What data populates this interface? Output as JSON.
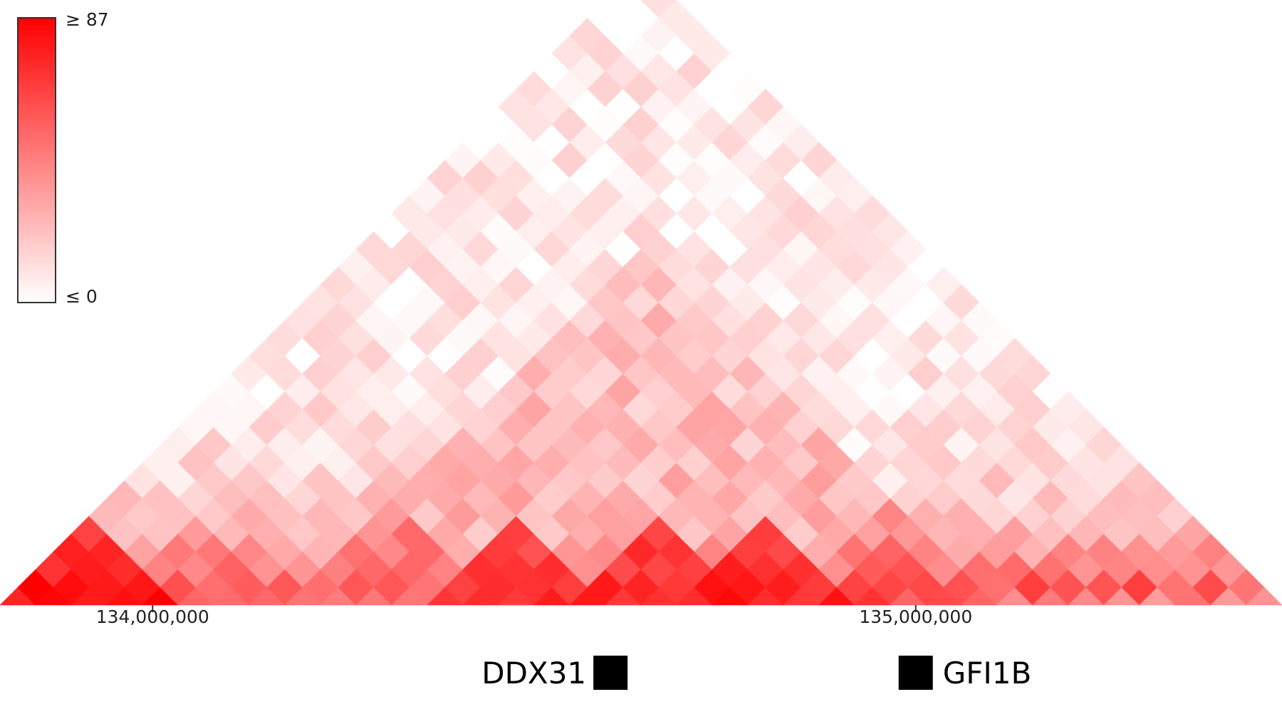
{
  "chart_data": {
    "type": "heatmap",
    "description_kind": "triangular contact map",
    "n_bins": 36,
    "color_scale": {
      "min_label": "≤ 0",
      "max_label": "≥ 87",
      "min_value": 0,
      "max_value": 87,
      "low_color": "#ffffff",
      "high_color": "#ff0000",
      "legend_placement": "top-left"
    },
    "x_axis": {
      "range_bp": [
        133800000,
        135480000
      ],
      "ticks": [
        {
          "value": 134000000,
          "label": "134,000,000"
        },
        {
          "value": 135000000,
          "label": "135,000,000"
        }
      ]
    },
    "tad_hotspots": [
      {
        "start_bin": 0,
        "end_bin": 4,
        "strength": 0.97
      },
      {
        "start_bin": 3,
        "end_bin": 7,
        "strength": 0.55
      },
      {
        "start_bin": 8,
        "end_bin": 13,
        "strength": 0.62
      },
      {
        "start_bin": 12,
        "end_bin": 16,
        "strength": 0.82
      },
      {
        "start_bin": 16,
        "end_bin": 20,
        "strength": 0.85
      },
      {
        "start_bin": 19,
        "end_bin": 23,
        "strength": 0.88
      },
      {
        "start_bin": 22,
        "end_bin": 27,
        "strength": 0.55
      },
      {
        "start_bin": 23,
        "end_bin": 26,
        "strength": 0.7
      },
      {
        "start_bin": 29,
        "end_bin": 35,
        "strength": 0.35
      }
    ],
    "genes": [
      {
        "name": "DDX31",
        "position_bp": 134600000,
        "label_side": "left"
      },
      {
        "name": "GFI1B",
        "position_bp": 135000000,
        "label_side": "right"
      }
    ]
  }
}
